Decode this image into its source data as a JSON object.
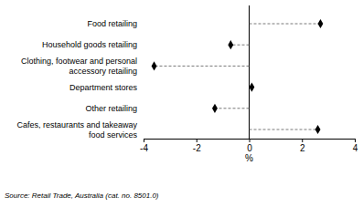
{
  "chart_data": {
    "type": "dot",
    "orientation": "horizontal",
    "marker": "diamond",
    "line_style": "dashed",
    "color": "#000000",
    "categories": [
      "Food retailing",
      "Household goods retailing",
      "Clothing, footwear and personal accessory retailing",
      "Department stores",
      "Other retailing",
      "Cafes, restaurants and takeaway food services"
    ],
    "values": [
      2.7,
      -0.7,
      -3.6,
      0.1,
      -1.3,
      2.6
    ],
    "xlim": [
      -4,
      4
    ],
    "xticks": [
      -4,
      -2,
      0,
      2,
      4
    ],
    "xlabel": "%",
    "annotations": [
      "Source: Retail Trade, Australia (cat. no. 8501.0)"
    ]
  }
}
